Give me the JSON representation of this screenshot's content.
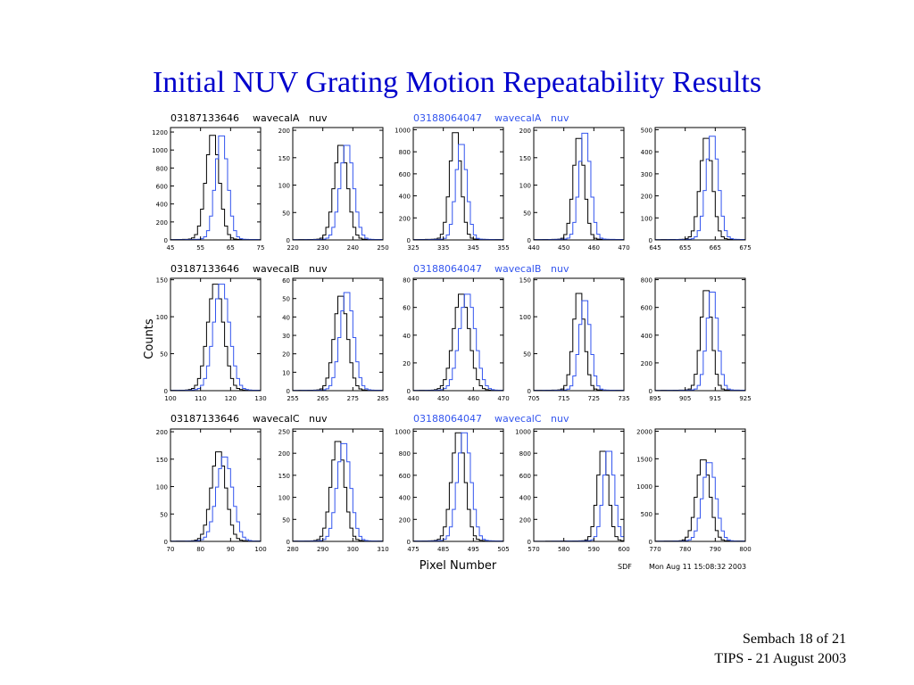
{
  "slide": {
    "title": "Initial NUV Grating Motion Repeatability Results",
    "footer_line1": "Sembach 18 of 21",
    "footer_line2": "TIPS - 21 August 2003"
  },
  "figure": {
    "ylabel": "Counts",
    "xlabel": "Pixel Number",
    "credit": "SDF",
    "timestamp": "Mon Aug 11 15:08:32 2003",
    "colors": {
      "series_a": "#000000",
      "series_b": "#3355ee"
    },
    "row_headers": [
      {
        "left": {
          "id": "03187133646",
          "mode": "wavecalA",
          "det": "nuv"
        },
        "right": {
          "id": "03188064047",
          "mode": "wavecalA",
          "det": "nuv"
        }
      },
      {
        "left": {
          "id": "03187133646",
          "mode": "wavecalB",
          "det": "nuv"
        },
        "right": {
          "id": "03188064047",
          "mode": "wavecalB",
          "det": "nuv"
        }
      },
      {
        "left": {
          "id": "03187133646",
          "mode": "wavecalC",
          "det": "nuv"
        },
        "right": {
          "id": "03188064047",
          "mode": "wavecalC",
          "det": "nuv"
        }
      }
    ]
  },
  "chart_data": [
    {
      "type": "histogram",
      "panel": "row1-col1",
      "xlim": [
        45,
        75
      ],
      "xticks": [
        45,
        55,
        65,
        75
      ],
      "ylim": [
        0,
        1250
      ],
      "yticks": [
        0,
        200,
        400,
        600,
        800,
        1000,
        1200
      ],
      "grid": false,
      "series": [
        {
          "center": 59,
          "peak": 1180,
          "width": 2.2
        },
        {
          "center": 62,
          "peak": 1180,
          "width": 2.0
        }
      ]
    },
    {
      "type": "histogram",
      "panel": "row1-col2",
      "xlim": [
        220,
        250
      ],
      "xticks": [
        220,
        230,
        240,
        250
      ],
      "ylim": [
        0,
        205
      ],
      "yticks": [
        0,
        50,
        100,
        150,
        200
      ],
      "grid": false,
      "series": [
        {
          "center": 236,
          "peak": 175,
          "width": 2.2
        },
        {
          "center": 238,
          "peak": 175,
          "width": 2.2
        }
      ]
    },
    {
      "type": "histogram",
      "panel": "row1-col3",
      "xlim": [
        325,
        355
      ],
      "xticks": [
        325,
        335,
        345,
        355
      ],
      "ylim": [
        0,
        1020
      ],
      "yticks": [
        0,
        200,
        400,
        600,
        800,
        1000
      ],
      "grid": false,
      "series": [
        {
          "center": 339,
          "peak": 1000,
          "width": 1.8
        },
        {
          "center": 341,
          "peak": 890,
          "width": 1.8
        }
      ]
    },
    {
      "type": "histogram",
      "panel": "row1-col4",
      "xlim": [
        440,
        470
      ],
      "xticks": [
        440,
        450,
        460,
        470
      ],
      "ylim": [
        0,
        205
      ],
      "yticks": [
        0,
        50,
        100,
        150,
        200
      ],
      "grid": false,
      "series": [
        {
          "center": 455,
          "peak": 190,
          "width": 1.8
        },
        {
          "center": 457,
          "peak": 200,
          "width": 1.8
        }
      ]
    },
    {
      "type": "histogram",
      "panel": "row1-col5",
      "xlim": [
        645,
        675
      ],
      "xticks": [
        645,
        655,
        665,
        675
      ],
      "ylim": [
        0,
        510
      ],
      "yticks": [
        0,
        100,
        200,
        300,
        400,
        500
      ],
      "grid": false,
      "series": [
        {
          "center": 662,
          "peak": 470,
          "width": 2.0
        },
        {
          "center": 664,
          "peak": 480,
          "width": 2.0
        }
      ]
    },
    {
      "type": "histogram",
      "panel": "row2-col1",
      "xlim": [
        100,
        130
      ],
      "xticks": [
        100,
        110,
        120,
        130
      ],
      "ylim": [
        0,
        152
      ],
      "yticks": [
        0,
        50,
        100,
        150
      ],
      "grid": false,
      "series": [
        {
          "center": 115,
          "peak": 145,
          "width": 2.6
        },
        {
          "center": 117,
          "peak": 145,
          "width": 2.6
        }
      ]
    },
    {
      "type": "histogram",
      "panel": "row2-col2",
      "xlim": [
        255,
        285
      ],
      "xticks": [
        255,
        265,
        275,
        285
      ],
      "ylim": [
        0,
        61
      ],
      "yticks": [
        0,
        10,
        20,
        30,
        40,
        50,
        60
      ],
      "grid": false,
      "series": [
        {
          "center": 271,
          "peak": 52,
          "width": 2.2
        },
        {
          "center": 273,
          "peak": 54,
          "width": 2.2
        }
      ]
    },
    {
      "type": "histogram",
      "panel": "row2-col3",
      "xlim": [
        440,
        470
      ],
      "xticks": [
        440,
        450,
        460,
        470
      ],
      "ylim": [
        0,
        81
      ],
      "yticks": [
        0,
        20,
        40,
        60,
        80
      ],
      "grid": false,
      "series": [
        {
          "center": 456,
          "peak": 70,
          "width": 2.6
        },
        {
          "center": 458,
          "peak": 70,
          "width": 2.6
        }
      ]
    },
    {
      "type": "histogram",
      "panel": "row2-col4",
      "xlim": [
        705,
        735
      ],
      "xticks": [
        705,
        715,
        725,
        735
      ],
      "ylim": [
        0,
        152
      ],
      "yticks": [
        0,
        50,
        100,
        150
      ],
      "grid": false,
      "series": [
        {
          "center": 720,
          "peak": 135,
          "width": 1.8
        },
        {
          "center": 722,
          "peak": 125,
          "width": 1.8
        }
      ]
    },
    {
      "type": "histogram",
      "panel": "row2-col5",
      "xlim": [
        895,
        925
      ],
      "xticks": [
        895,
        905,
        915,
        925
      ],
      "ylim": [
        0,
        810
      ],
      "yticks": [
        0,
        200,
        400,
        600,
        800
      ],
      "grid": false,
      "series": [
        {
          "center": 912,
          "peak": 740,
          "width": 1.8
        },
        {
          "center": 914,
          "peak": 730,
          "width": 1.8
        }
      ]
    },
    {
      "type": "histogram",
      "panel": "row3-col1",
      "xlim": [
        70,
        100
      ],
      "xticks": [
        70,
        80,
        90,
        100
      ],
      "ylim": [
        0,
        205
      ],
      "yticks": [
        0,
        50,
        100,
        150,
        200
      ],
      "grid": false,
      "series": [
        {
          "center": 86,
          "peak": 165,
          "width": 2.4
        },
        {
          "center": 88,
          "peak": 155,
          "width": 2.6
        }
      ]
    },
    {
      "type": "histogram",
      "panel": "row3-col2",
      "xlim": [
        280,
        310
      ],
      "xticks": [
        280,
        290,
        300,
        310
      ],
      "ylim": [
        0,
        255
      ],
      "yticks": [
        0,
        50,
        100,
        150,
        200,
        250
      ],
      "grid": false,
      "series": [
        {
          "center": 295,
          "peak": 230,
          "width": 2.2
        },
        {
          "center": 297,
          "peak": 225,
          "width": 2.2
        }
      ]
    },
    {
      "type": "histogram",
      "panel": "row3-col3",
      "xlim": [
        475,
        505
      ],
      "xticks": [
        475,
        485,
        495,
        505
      ],
      "ylim": [
        0,
        1020
      ],
      "yticks": [
        0,
        200,
        400,
        600,
        800,
        1000
      ],
      "grid": false,
      "series": [
        {
          "center": 490,
          "peak": 1000,
          "width": 2.2
        },
        {
          "center": 492,
          "peak": 1000,
          "width": 2.2
        }
      ]
    },
    {
      "type": "histogram",
      "panel": "row3-col4",
      "xlim": [
        570,
        600
      ],
      "xticks": [
        570,
        580,
        590,
        600
      ],
      "ylim": [
        0,
        1020
      ],
      "yticks": [
        0,
        200,
        400,
        600,
        800,
        1000
      ],
      "grid": false,
      "series": [
        {
          "center": 593,
          "peak": 840,
          "width": 1.8
        },
        {
          "center": 595,
          "peak": 840,
          "width": 1.8
        }
      ]
    },
    {
      "type": "histogram",
      "panel": "row3-col5",
      "xlim": [
        770,
        800
      ],
      "xticks": [
        770,
        780,
        790,
        800
      ],
      "ylim": [
        0,
        2040
      ],
      "yticks": [
        0,
        500,
        1000,
        1500,
        2000
      ],
      "grid": false,
      "series": [
        {
          "center": 786,
          "peak": 1500,
          "width": 2.2
        },
        {
          "center": 788,
          "peak": 1450,
          "width": 2.2
        }
      ]
    }
  ]
}
